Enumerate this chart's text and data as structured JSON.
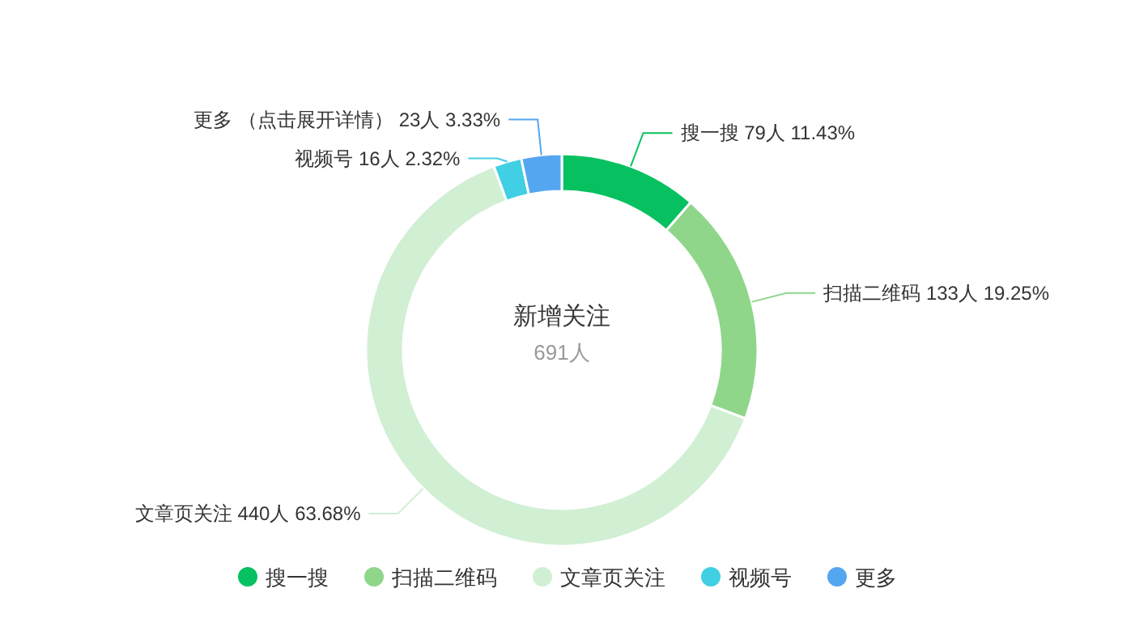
{
  "chart_data": {
    "type": "donut",
    "title": "新增关注",
    "subtitle": "691人",
    "categories": [
      "搜一搜",
      "扫描二维码",
      "文章页关注",
      "视频号",
      "更多"
    ],
    "values": [
      79,
      133,
      440,
      16,
      23
    ],
    "value_labels": [
      "79人 11.43%",
      "133人 19.25%",
      "440人 63.68%",
      "16人 2.32%",
      "（点击展开详情） 23人 3.33%"
    ],
    "colors": [
      "#07c160",
      "#8fd68b",
      "#d1efd3",
      "#40cfe3",
      "#55a6f0"
    ],
    "legend": "bottom"
  }
}
